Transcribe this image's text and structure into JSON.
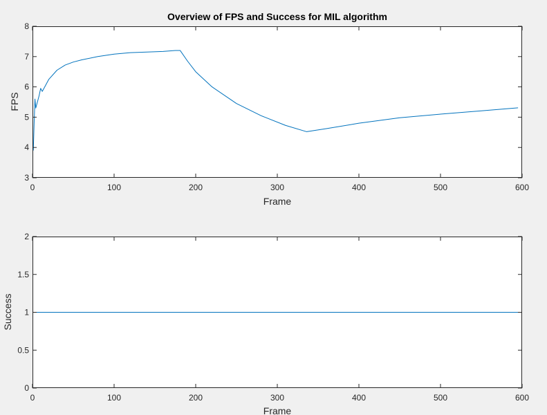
{
  "colors": {
    "line": "#0072BD",
    "axes": "#262626",
    "plot_bg": "#ffffff",
    "figure_bg": "#f0f0f0"
  },
  "chart_data": [
    {
      "type": "line",
      "title": "Overview of FPS and Success for MIL algorithm",
      "xlabel": "Frame",
      "ylabel": "FPS",
      "xlim": [
        0,
        600
      ],
      "ylim": [
        3,
        8
      ],
      "xticks": [
        0,
        100,
        200,
        300,
        400,
        500,
        600
      ],
      "yticks": [
        3,
        4,
        5,
        6,
        7,
        8
      ],
      "x": [
        1,
        2,
        3,
        4,
        5,
        6,
        8,
        10,
        12,
        15,
        20,
        30,
        40,
        50,
        60,
        80,
        100,
        120,
        140,
        160,
        175,
        181,
        190,
        200,
        220,
        250,
        280,
        310,
        336,
        360,
        400,
        450,
        500,
        550,
        595
      ],
      "series": [
        {
          "values": [
            3.9,
            4.8,
            5.6,
            5.3,
            5.4,
            5.5,
            5.7,
            5.95,
            5.85,
            6.0,
            6.25,
            6.55,
            6.72,
            6.82,
            6.89,
            7.0,
            7.08,
            7.13,
            7.15,
            7.17,
            7.2,
            7.2,
            6.85,
            6.5,
            6.0,
            5.45,
            5.05,
            4.73,
            4.52,
            4.62,
            4.8,
            4.98,
            5.1,
            5.21,
            5.31
          ]
        }
      ]
    },
    {
      "type": "line",
      "title": "",
      "xlabel": "Frame",
      "ylabel": "Success",
      "xlim": [
        0,
        600
      ],
      "ylim": [
        0,
        2
      ],
      "xticks": [
        0,
        100,
        200,
        300,
        400,
        500,
        600
      ],
      "yticks": [
        0,
        0.5,
        1,
        1.5,
        2
      ],
      "x": [
        1,
        595
      ],
      "series": [
        {
          "values": [
            1,
            1
          ]
        }
      ]
    }
  ]
}
